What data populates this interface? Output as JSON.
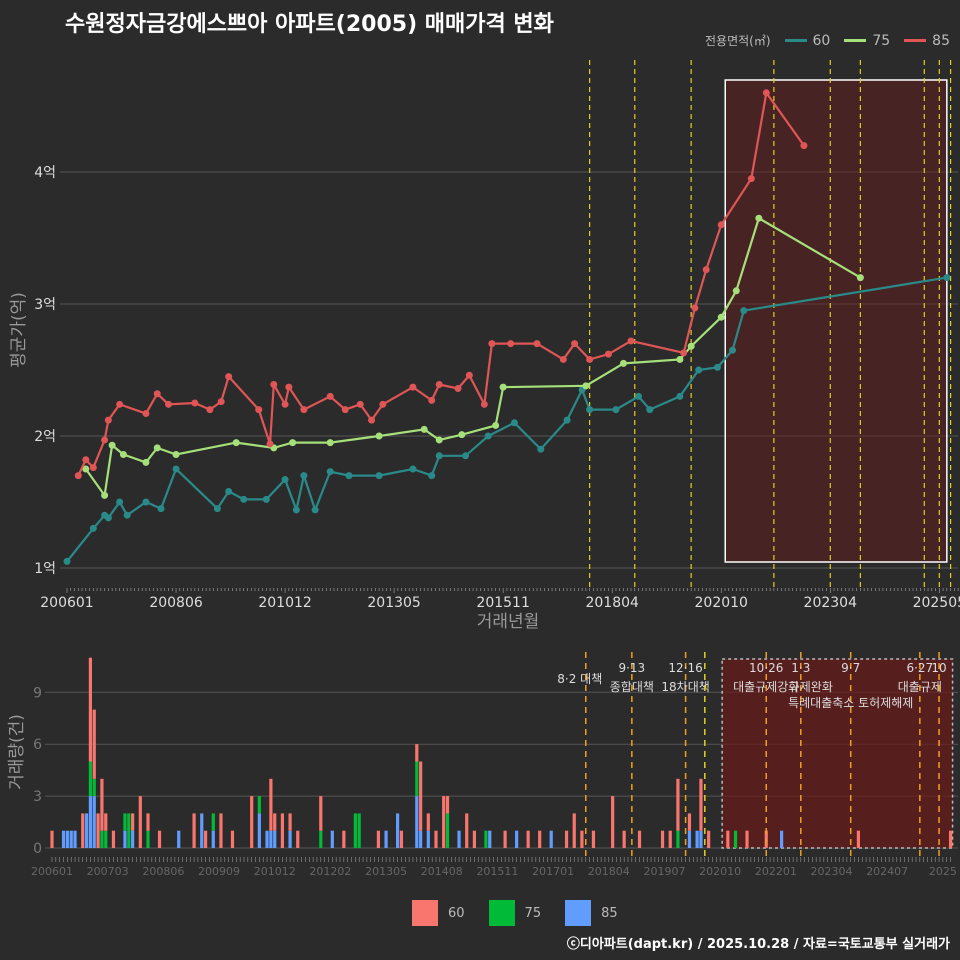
{
  "title": "수원정자금강에스쁘아 아파트(2005) 매매가격 변화",
  "legend_title": "전용면적(㎡)",
  "footer": "ⓒ디아파트(dapt.kr) / 2025.10.28 / 자료=국토교통부 실거래가",
  "colors": {
    "s60": "#2a8a8a",
    "s75": "#a6e07a",
    "s85": "#e05555",
    "b60": "#f8766d",
    "b75": "#00ba38",
    "b85": "#619cff"
  },
  "chart_data": [
    {
      "type": "line",
      "title": "수원정자금강에스쁘아 아파트(2005) 매매가격 변화",
      "xlabel": "거래년월",
      "ylabel": "평균가(억)",
      "x_unit": "months since 200601",
      "ylim": [
        0.9,
        4.8
      ],
      "yticks": [
        1,
        2,
        3,
        4
      ],
      "ytick_labels": [
        "1억",
        "2억",
        "3억",
        "4억"
      ],
      "xticks": [
        0,
        29,
        58,
        87,
        116,
        145,
        174,
        203,
        232
      ],
      "xtick_labels": [
        "200601",
        "200806",
        "201012",
        "201305",
        "201511",
        "201804",
        "202010",
        "202304",
        "202505"
      ],
      "highlight_range": [
        174,
        234
      ],
      "event_lines": [
        139,
        151,
        166,
        188,
        203,
        211,
        228,
        232,
        235
      ],
      "series": [
        {
          "name": "60",
          "points": [
            [
              0,
              1.05
            ],
            [
              7,
              1.3
            ],
            [
              10,
              1.4
            ],
            [
              11,
              1.38
            ],
            [
              14,
              1.5
            ],
            [
              16,
              1.4
            ],
            [
              21,
              1.5
            ],
            [
              25,
              1.45
            ],
            [
              29,
              1.75
            ],
            [
              40,
              1.45
            ],
            [
              43,
              1.58
            ],
            [
              47,
              1.52
            ],
            [
              53,
              1.52
            ],
            [
              58,
              1.67
            ],
            [
              61,
              1.44
            ],
            [
              63,
              1.7
            ],
            [
              66,
              1.44
            ],
            [
              70,
              1.73
            ],
            [
              75,
              1.7
            ],
            [
              83,
              1.7
            ],
            [
              92,
              1.75
            ],
            [
              97,
              1.7
            ],
            [
              99,
              1.85
            ],
            [
              106,
              1.85
            ],
            [
              112,
              2.0
            ],
            [
              119,
              2.1
            ],
            [
              126,
              1.9
            ],
            [
              133,
              2.12
            ],
            [
              137,
              2.35
            ],
            [
              139,
              2.2
            ],
            [
              146,
              2.2
            ],
            [
              152,
              2.3
            ],
            [
              155,
              2.2
            ],
            [
              163,
              2.3
            ],
            [
              168,
              2.5
            ],
            [
              173,
              2.52
            ],
            [
              177,
              2.65
            ],
            [
              180,
              2.95
            ],
            [
              234,
              3.2
            ]
          ]
        },
        {
          "name": "75",
          "points": [
            [
              5,
              1.75
            ],
            [
              10,
              1.55
            ],
            [
              12,
              1.93
            ],
            [
              15,
              1.86
            ],
            [
              21,
              1.8
            ],
            [
              24,
              1.91
            ],
            [
              29,
              1.86
            ],
            [
              45,
              1.95
            ],
            [
              55,
              1.91
            ],
            [
              60,
              1.95
            ],
            [
              70,
              1.95
            ],
            [
              83,
              2.0
            ],
            [
              95,
              2.05
            ],
            [
              99,
              1.97
            ],
            [
              105,
              2.01
            ],
            [
              114,
              2.08
            ],
            [
              116,
              2.37
            ],
            [
              138,
              2.38
            ],
            [
              148,
              2.55
            ],
            [
              163,
              2.58
            ],
            [
              166,
              2.68
            ],
            [
              174,
              2.9
            ],
            [
              178,
              3.1
            ],
            [
              184,
              3.65
            ],
            [
              211,
              3.2
            ]
          ]
        },
        {
          "name": "85",
          "points": [
            [
              3,
              1.7
            ],
            [
              5,
              1.82
            ],
            [
              7,
              1.76
            ],
            [
              10,
              1.97
            ],
            [
              11,
              2.12
            ],
            [
              14,
              2.24
            ],
            [
              21,
              2.17
            ],
            [
              24,
              2.32
            ],
            [
              27,
              2.24
            ],
            [
              34,
              2.25
            ],
            [
              38,
              2.2
            ],
            [
              41,
              2.26
            ],
            [
              43,
              2.45
            ],
            [
              51,
              2.2
            ],
            [
              54,
              1.94
            ],
            [
              55,
              2.39
            ],
            [
              58,
              2.24
            ],
            [
              59,
              2.37
            ],
            [
              63,
              2.2
            ],
            [
              70,
              2.3
            ],
            [
              74,
              2.2
            ],
            [
              78,
              2.24
            ],
            [
              81,
              2.12
            ],
            [
              84,
              2.24
            ],
            [
              92,
              2.37
            ],
            [
              97,
              2.27
            ],
            [
              99,
              2.39
            ],
            [
              104,
              2.36
            ],
            [
              107,
              2.46
            ],
            [
              111,
              2.24
            ],
            [
              113,
              2.7
            ],
            [
              118,
              2.7
            ],
            [
              125,
              2.7
            ],
            [
              132,
              2.58
            ],
            [
              135,
              2.7
            ],
            [
              139,
              2.58
            ],
            [
              144,
              2.62
            ],
            [
              150,
              2.72
            ],
            [
              164,
              2.63
            ],
            [
              167,
              2.97
            ],
            [
              170,
              3.26
            ],
            [
              174,
              3.6
            ],
            [
              182,
              3.95
            ],
            [
              186,
              4.6
            ],
            [
              196,
              4.2
            ]
          ]
        }
      ]
    },
    {
      "type": "bar",
      "ylabel": "거래량(건)",
      "yticks": [
        0,
        3,
        6,
        9
      ],
      "ylim": [
        0,
        11.5
      ],
      "xtick_labels": [
        "200601",
        "200703",
        "200806",
        "200909",
        "201012",
        "201202",
        "201305",
        "201408",
        "201511",
        "201701",
        "201804",
        "201907",
        "202010",
        "202201",
        "202304",
        "202407",
        "2025"
      ],
      "highlight_range": [
        174,
        234
      ],
      "legend": [
        "60",
        "75",
        "85"
      ],
      "events": [
        {
          "m": 139,
          "date": "8·2 대책",
          "label": ""
        },
        {
          "m": 151,
          "date": "9·13",
          "label": "종합대책"
        },
        {
          "m": 165,
          "date": "12·16",
          "label": "18차대책"
        },
        {
          "m": 170,
          "date": "",
          "label": ""
        },
        {
          "m": 186,
          "date": "10·26",
          "label": "대출규제강화"
        },
        {
          "m": 195,
          "date": "1·3",
          "label": "규제완화"
        },
        {
          "m": 208,
          "date": "9·7",
          "label": "특례대출축소 토허제해제"
        },
        {
          "m": 226,
          "date": "6·27",
          "label": "대출규제"
        },
        {
          "m": 231,
          "date": "10",
          "label": ""
        }
      ],
      "bars": [
        [
          0,
          1,
          0,
          0
        ],
        [
          3,
          0,
          0,
          1
        ],
        [
          4,
          0,
          0,
          1
        ],
        [
          5,
          0,
          0,
          1
        ],
        [
          6,
          0,
          0,
          1
        ],
        [
          8,
          2,
          0,
          0
        ],
        [
          9,
          0,
          0,
          2
        ],
        [
          10,
          6,
          2,
          3
        ],
        [
          11,
          4,
          1,
          3
        ],
        [
          12,
          2,
          0,
          0
        ],
        [
          13,
          3,
          1,
          0
        ],
        [
          14,
          1,
          1,
          0
        ],
        [
          16,
          1,
          0,
          0
        ],
        [
          19,
          0,
          1,
          1
        ],
        [
          20,
          0,
          2,
          0
        ],
        [
          21,
          1,
          0,
          1
        ],
        [
          23,
          3,
          0,
          0
        ],
        [
          25,
          1,
          1,
          0
        ],
        [
          28,
          1,
          0,
          0
        ],
        [
          33,
          0,
          0,
          1
        ],
        [
          37,
          2,
          0,
          0
        ],
        [
          39,
          0,
          0,
          2
        ],
        [
          40,
          1,
          0,
          0
        ],
        [
          42,
          0,
          1,
          1
        ],
        [
          44,
          2,
          0,
          0
        ],
        [
          47,
          1,
          0,
          0
        ],
        [
          52,
          3,
          0,
          0
        ],
        [
          54,
          0,
          1,
          2
        ],
        [
          56,
          0,
          0,
          1
        ],
        [
          57,
          3,
          0,
          1
        ],
        [
          58,
          1,
          0,
          1
        ],
        [
          60,
          2,
          0,
          0
        ],
        [
          62,
          1,
          0,
          1
        ],
        [
          64,
          1,
          0,
          0
        ],
        [
          70,
          2,
          1,
          0
        ],
        [
          73,
          0,
          0,
          1
        ],
        [
          76,
          1,
          0,
          0
        ],
        [
          79,
          0,
          2,
          0
        ],
        [
          80,
          0,
          2,
          0
        ],
        [
          85,
          1,
          0,
          0
        ],
        [
          87,
          0,
          0,
          1
        ],
        [
          90,
          0,
          0,
          2
        ],
        [
          91,
          1,
          0,
          0
        ],
        [
          95,
          1,
          2,
          3
        ],
        [
          96,
          4,
          0,
          1
        ],
        [
          98,
          1,
          0,
          1
        ],
        [
          100,
          1,
          0,
          0
        ],
        [
          102,
          3,
          0,
          0
        ],
        [
          103,
          1,
          2,
          0
        ],
        [
          106,
          0,
          0,
          1
        ],
        [
          108,
          2,
          0,
          0
        ],
        [
          110,
          1,
          0,
          0
        ],
        [
          113,
          0,
          1,
          0
        ],
        [
          114,
          0,
          0,
          1
        ],
        [
          118,
          1,
          0,
          0
        ],
        [
          121,
          0,
          0,
          1
        ],
        [
          124,
          1,
          0,
          0
        ],
        [
          127,
          1,
          0,
          0
        ],
        [
          130,
          0,
          0,
          1
        ],
        [
          134,
          1,
          0,
          0
        ],
        [
          136,
          2,
          0,
          0
        ],
        [
          138,
          1,
          0,
          0
        ],
        [
          141,
          1,
          0,
          0
        ],
        [
          146,
          3,
          0,
          0
        ],
        [
          149,
          1,
          0,
          0
        ],
        [
          153,
          1,
          0,
          0
        ],
        [
          159,
          1,
          0,
          0
        ],
        [
          161,
          1,
          0,
          0
        ],
        [
          163,
          3,
          1,
          0
        ],
        [
          166,
          1,
          0,
          1
        ],
        [
          168,
          0,
          0,
          1
        ],
        [
          169,
          3,
          0,
          1
        ],
        [
          171,
          1,
          0,
          0
        ],
        [
          176,
          1,
          0,
          0
        ],
        [
          178,
          0,
          1,
          0
        ],
        [
          181,
          1,
          0,
          0
        ],
        [
          186,
          1,
          0,
          0
        ],
        [
          190,
          0,
          0,
          1
        ],
        [
          210,
          1,
          0,
          0
        ],
        [
          234,
          1,
          0,
          0
        ]
      ]
    }
  ]
}
